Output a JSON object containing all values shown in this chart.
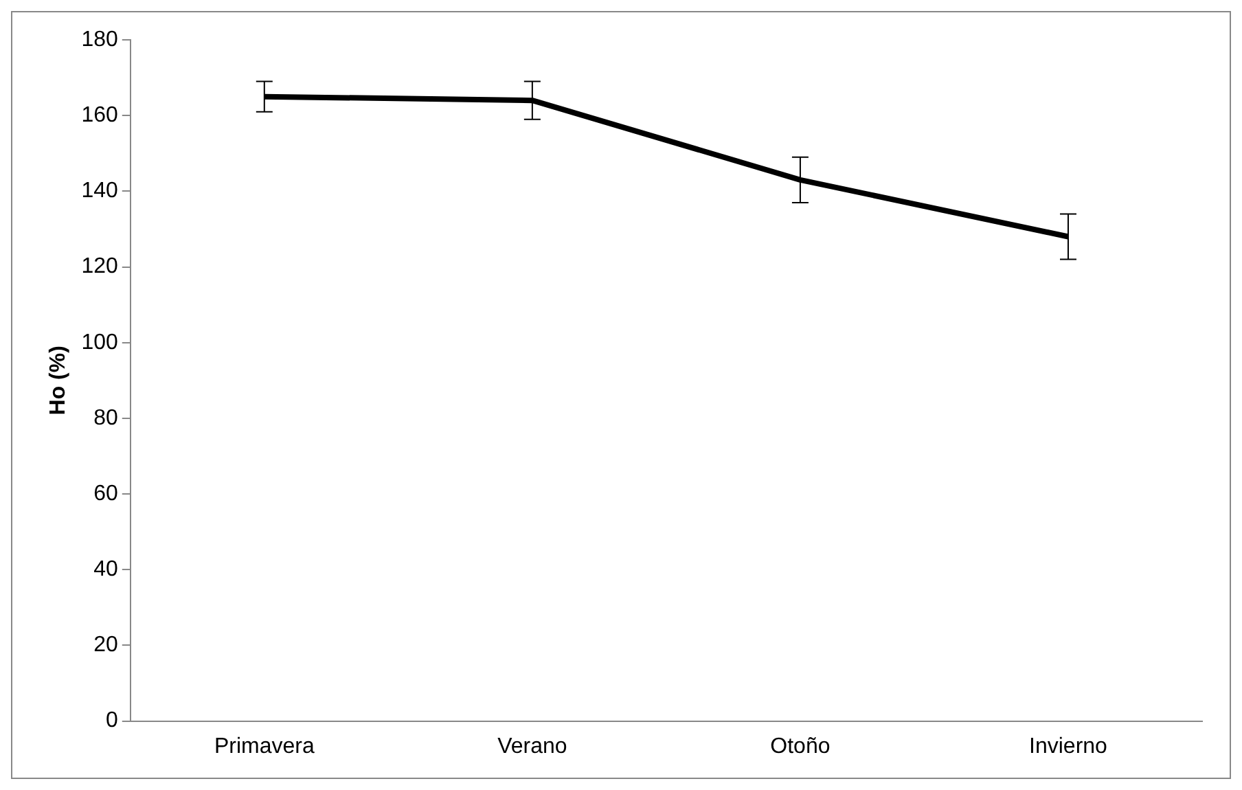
{
  "chart_data": {
    "type": "line",
    "ylabel": "Ho (%)",
    "categories": [
      "Primavera",
      "Verano",
      "Otoño",
      "Invierno"
    ],
    "series": [
      {
        "color": "#000000",
        "values": [
          165,
          164,
          143,
          128
        ],
        "errors": [
          4,
          5,
          6,
          6
        ]
      }
    ],
    "ylim": [
      0,
      180
    ],
    "yticks": [
      0,
      20,
      40,
      60,
      80,
      100,
      120,
      140,
      160,
      180
    ],
    "grid": false,
    "legend": false,
    "marker": "none",
    "line_style": "solid"
  }
}
